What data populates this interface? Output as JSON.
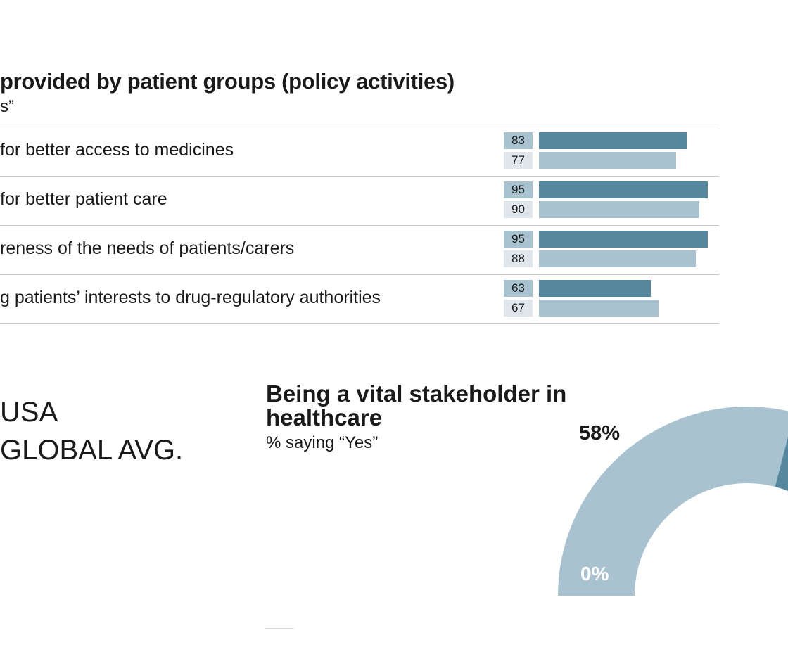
{
  "chart_data": [
    {
      "type": "bar",
      "orientation": "horizontal",
      "title": "provided by patient groups (policy activities)",
      "subtitle": "s”",
      "categories": [
        "for better access to medicines",
        "for better patient care",
        "reness of the needs of patients/carers",
        "g patients’ interests to drug-regulatory authorities"
      ],
      "series": [
        {
          "name": "USA",
          "values": [
            83,
            95,
            95,
            63
          ],
          "color": "#55879e"
        },
        {
          "name": "GLOBAL AVG.",
          "values": [
            77,
            90,
            88,
            67
          ],
          "color": "#a8c2cf"
        }
      ],
      "xlim": [
        0,
        100
      ],
      "grid": false
    },
    {
      "type": "gauge",
      "title": "Being a vital stakeholder in healthcare",
      "subtitle": "% saying “Yes”",
      "value_label": "58%",
      "min_label": "0%",
      "value": 58,
      "range": [
        0,
        100
      ],
      "fill_color": "#a8c2cf",
      "accent_color": "#55879e"
    }
  ],
  "legend": {
    "items": [
      "USA",
      "GLOBAL AVG."
    ]
  }
}
